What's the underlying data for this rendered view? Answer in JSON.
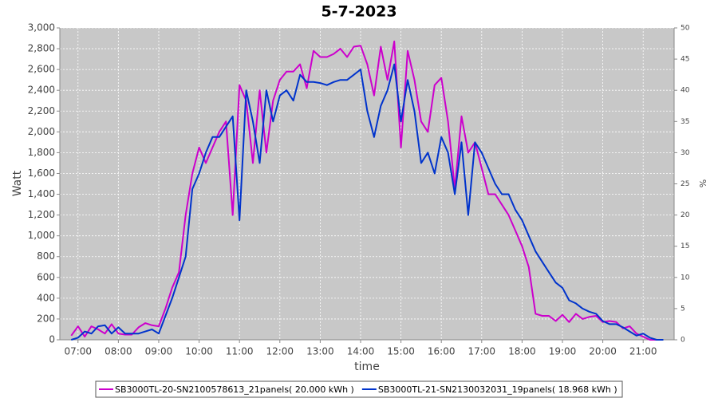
{
  "chart_data": {
    "type": "line",
    "title": "5-7-2023",
    "xlabel": "time",
    "ylabel": "Watt",
    "y2label": "%",
    "x": [
      "06:50",
      "07:00",
      "07:10",
      "07:20",
      "07:30",
      "07:40",
      "07:50",
      "08:00",
      "08:10",
      "08:20",
      "08:30",
      "08:40",
      "08:50",
      "09:00",
      "09:10",
      "09:20",
      "09:30",
      "09:40",
      "09:50",
      "10:00",
      "10:10",
      "10:20",
      "10:30",
      "10:40",
      "10:50",
      "11:00",
      "11:10",
      "11:20",
      "11:30",
      "11:40",
      "11:50",
      "12:00",
      "12:10",
      "12:20",
      "12:30",
      "12:40",
      "12:50",
      "13:00",
      "13:10",
      "13:20",
      "13:30",
      "13:40",
      "13:50",
      "14:00",
      "14:10",
      "14:20",
      "14:30",
      "14:40",
      "14:50",
      "15:00",
      "15:10",
      "15:20",
      "15:30",
      "15:40",
      "15:50",
      "16:00",
      "16:10",
      "16:20",
      "16:30",
      "16:40",
      "16:50",
      "17:00",
      "17:10",
      "17:20",
      "17:30",
      "17:40",
      "17:50",
      "18:00",
      "18:10",
      "18:20",
      "18:30",
      "18:40",
      "18:50",
      "19:00",
      "19:10",
      "19:20",
      "19:30",
      "19:40",
      "19:50",
      "20:00",
      "20:10",
      "20:20",
      "20:30",
      "20:40",
      "20:50",
      "21:00",
      "21:10",
      "21:20",
      "21:30"
    ],
    "series": [
      {
        "name": "SB3000TL-20-SN2100578613_21panels( 20.000 kWh )",
        "color": "#cc00cc",
        "values": [
          40,
          130,
          30,
          130,
          100,
          60,
          150,
          60,
          50,
          50,
          120,
          160,
          140,
          130,
          300,
          500,
          650,
          1200,
          1600,
          1850,
          1700,
          1850,
          2000,
          2100,
          1200,
          2450,
          2300,
          1700,
          2400,
          1800,
          2300,
          2500,
          2580,
          2580,
          2650,
          2420,
          2780,
          2720,
          2720,
          2750,
          2800,
          2720,
          2820,
          2830,
          2650,
          2350,
          2820,
          2500,
          2870,
          1850,
          2780,
          2500,
          2100,
          2000,
          2450,
          2520,
          2100,
          1450,
          2150,
          1800,
          1900,
          1650,
          1400,
          1400,
          1300,
          1200,
          1050,
          900,
          700,
          250,
          230,
          230,
          180,
          240,
          170,
          250,
          200,
          220,
          230,
          170,
          180,
          170,
          110,
          130,
          60,
          30,
          0,
          0,
          0
        ]
      },
      {
        "name": "SB3000TL-21-SN2130032031_19panels( 18.968 kWh )",
        "color": "#0033cc",
        "values": [
          0,
          20,
          80,
          60,
          130,
          140,
          60,
          120,
          60,
          60,
          60,
          80,
          100,
          60,
          230,
          400,
          600,
          800,
          1450,
          1600,
          1800,
          1950,
          1950,
          2050,
          2150,
          1150,
          2400,
          2100,
          1700,
          2400,
          2100,
          2350,
          2400,
          2300,
          2550,
          2480,
          2480,
          2470,
          2450,
          2480,
          2500,
          2500,
          2550,
          2600,
          2200,
          1950,
          2250,
          2400,
          2650,
          2100,
          2500,
          2200,
          1700,
          1800,
          1600,
          1950,
          1800,
          1400,
          1900,
          1200,
          1900,
          1800,
          1650,
          1500,
          1400,
          1400,
          1250,
          1150,
          1000,
          850,
          750,
          650,
          550,
          500,
          380,
          350,
          300,
          270,
          250,
          180,
          150,
          150,
          120,
          80,
          40,
          60,
          20,
          0,
          0
        ]
      }
    ],
    "xlim": [
      "06:33",
      "21:46"
    ],
    "xticks": [
      "07:00",
      "08:00",
      "09:00",
      "10:00",
      "11:00",
      "12:00",
      "13:00",
      "14:00",
      "15:00",
      "16:00",
      "17:00",
      "18:00",
      "19:00",
      "20:00",
      "21:00"
    ],
    "ylim": [
      0,
      3000
    ],
    "yticks": [
      0,
      200,
      400,
      600,
      800,
      {
        "value": 1000,
        "label": "1,000"
      },
      {
        "value": 1200,
        "label": "1,200"
      },
      {
        "value": 1400,
        "label": "1,400"
      },
      {
        "value": 1600,
        "label": "1,600"
      },
      {
        "value": 1800,
        "label": "1,800"
      },
      {
        "value": 2000,
        "label": "2,000"
      },
      {
        "value": 2200,
        "label": "2,200"
      },
      {
        "value": 2400,
        "label": "2,400"
      },
      {
        "value": 2600,
        "label": "2,600"
      },
      {
        "value": 2800,
        "label": "2,800"
      },
      {
        "value": 3000,
        "label": "3,000"
      }
    ],
    "y2lim": [
      0,
      50
    ],
    "y2ticks": [
      0,
      5,
      10,
      15,
      20,
      25,
      30,
      35,
      40,
      45,
      50
    ],
    "grid": true,
    "legend": "bottom"
  }
}
